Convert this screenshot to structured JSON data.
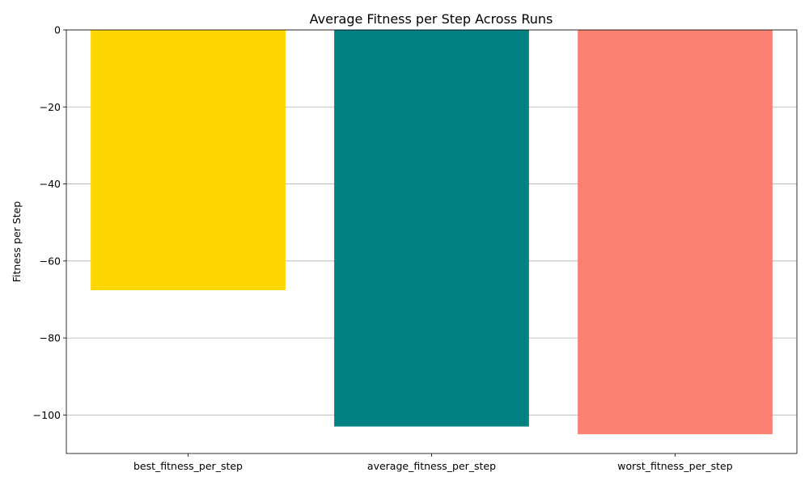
{
  "chart_data": {
    "type": "bar",
    "title": "Average Fitness per Step Across Runs",
    "xlabel": "",
    "ylabel": "Fitness per Step",
    "categories": [
      "best_fitness_per_step",
      "average_fitness_per_step",
      "worst_fitness_per_step"
    ],
    "values": [
      -67.6,
      -103.0,
      -105.0
    ],
    "colors": [
      "#FFD700",
      "#008080",
      "#FA8072"
    ],
    "ylim": [
      -110,
      0
    ],
    "yticks": [
      0,
      -20,
      -40,
      -60,
      -80,
      -100
    ],
    "ytick_labels": [
      "0",
      "−20",
      "−40",
      "−60",
      "−80",
      "−100"
    ],
    "grid": {
      "y": true,
      "x": false
    }
  }
}
